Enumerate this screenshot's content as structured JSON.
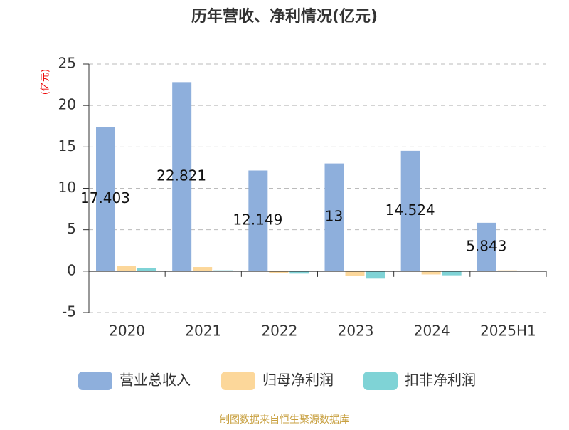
{
  "chart_data": {
    "type": "bar",
    "title": "历年营收、净利情况(亿元)",
    "y_label": "(亿元)",
    "categories": [
      "2020",
      "2021",
      "2022",
      "2023",
      "2024",
      "2025H1"
    ],
    "series": [
      {
        "name": "营业总收入",
        "color": "#8eafdc",
        "values": [
          17.403,
          22.821,
          12.149,
          13,
          14.524,
          5.843
        ]
      },
      {
        "name": "归母净利润",
        "color": "#fcd79a",
        "values": [
          0.6,
          0.5,
          -0.2,
          -0.6,
          -0.4,
          0.1
        ]
      },
      {
        "name": "扣非净利润",
        "color": "#7fd3d6",
        "values": [
          0.4,
          0.1,
          -0.3,
          -0.9,
          -0.5,
          0.05
        ]
      }
    ],
    "ylim": [
      -5,
      25
    ],
    "yticks": [
      -5,
      0,
      5,
      10,
      15,
      20,
      25
    ],
    "grid": true,
    "source": "制图数据来自恒生聚源数据库"
  }
}
